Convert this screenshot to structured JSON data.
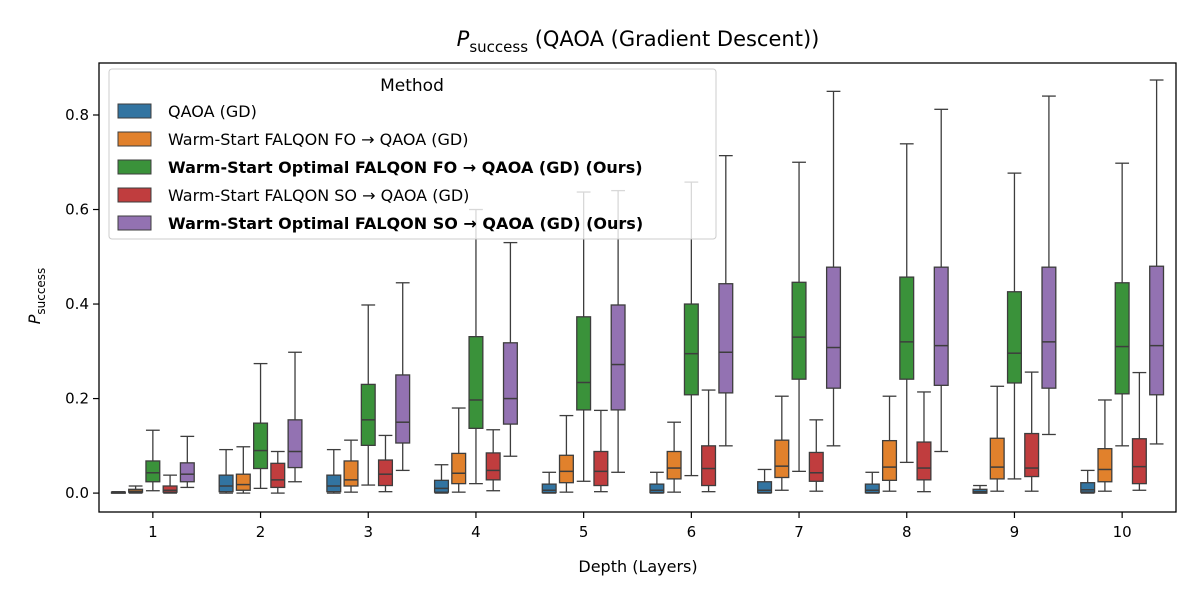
{
  "chart_data": {
    "type": "box",
    "title": "P",
    "title_sub": "success",
    "title_rest": " (QAOA (Gradient Descent))",
    "xlabel": "Depth (Layers)",
    "ylabel": "P",
    "ylabel_sub": "success",
    "ylim": [
      -0.04,
      0.91
    ],
    "y_ticks": [
      0.0,
      0.2,
      0.4,
      0.6,
      0.8
    ],
    "y_tick_labels": [
      "0.0",
      "0.2",
      "0.4",
      "0.6",
      "0.8"
    ],
    "categories": [
      "1",
      "2",
      "3",
      "4",
      "5",
      "6",
      "7",
      "8",
      "9",
      "10"
    ],
    "legend": {
      "title": "Method",
      "position": "top-left"
    },
    "series": [
      {
        "name": "QAOA (GD)",
        "color": "#3274a1",
        "bold": false,
        "boxes": [
          {
            "whislo": 0.0,
            "q1": 0.0,
            "med": 0.001,
            "q3": 0.002,
            "whishi": 0.003
          },
          {
            "whislo": 0.0,
            "q1": 0.003,
            "med": 0.015,
            "q3": 0.038,
            "whishi": 0.092
          },
          {
            "whislo": 0.0,
            "q1": 0.003,
            "med": 0.015,
            "q3": 0.038,
            "whishi": 0.092
          },
          {
            "whislo": 0.0,
            "q1": 0.002,
            "med": 0.01,
            "q3": 0.027,
            "whishi": 0.06
          },
          {
            "whislo": 0.0,
            "q1": 0.001,
            "med": 0.006,
            "q3": 0.019,
            "whishi": 0.044
          },
          {
            "whislo": 0.0,
            "q1": 0.001,
            "med": 0.006,
            "q3": 0.019,
            "whishi": 0.044
          },
          {
            "whislo": 0.0,
            "q1": 0.001,
            "med": 0.006,
            "q3": 0.024,
            "whishi": 0.05
          },
          {
            "whislo": 0.0,
            "q1": 0.001,
            "med": 0.006,
            "q3": 0.019,
            "whishi": 0.044
          },
          {
            "whislo": 0.0,
            "q1": 0.0,
            "med": 0.003,
            "q3": 0.008,
            "whishi": 0.016
          },
          {
            "whislo": 0.0,
            "q1": 0.002,
            "med": 0.007,
            "q3": 0.022,
            "whishi": 0.048
          }
        ]
      },
      {
        "name": "Warm-Start FALQON FO → QAOA (GD)",
        "color": "#e1812c",
        "bold": false,
        "boxes": [
          {
            "whislo": 0.0,
            "q1": 0.002,
            "med": 0.004,
            "q3": 0.008,
            "whishi": 0.015
          },
          {
            "whislo": 0.0,
            "q1": 0.006,
            "med": 0.018,
            "q3": 0.04,
            "whishi": 0.098
          },
          {
            "whislo": 0.002,
            "q1": 0.015,
            "med": 0.028,
            "q3": 0.068,
            "whishi": 0.112
          },
          {
            "whislo": 0.002,
            "q1": 0.02,
            "med": 0.042,
            "q3": 0.084,
            "whishi": 0.18
          },
          {
            "whislo": 0.002,
            "q1": 0.022,
            "med": 0.046,
            "q3": 0.08,
            "whishi": 0.164
          },
          {
            "whislo": 0.002,
            "q1": 0.03,
            "med": 0.053,
            "q3": 0.088,
            "whishi": 0.15
          },
          {
            "whislo": 0.006,
            "q1": 0.033,
            "med": 0.057,
            "q3": 0.112,
            "whishi": 0.205
          },
          {
            "whislo": 0.004,
            "q1": 0.027,
            "med": 0.055,
            "q3": 0.111,
            "whishi": 0.205
          },
          {
            "whislo": 0.004,
            "q1": 0.03,
            "med": 0.055,
            "q3": 0.116,
            "whishi": 0.226
          },
          {
            "whislo": 0.004,
            "q1": 0.024,
            "med": 0.05,
            "q3": 0.094,
            "whishi": 0.197
          }
        ]
      },
      {
        "name": "Warm-Start Optimal FALQON FO → QAOA (GD) (Ours)",
        "color": "#3a923a",
        "bold": true,
        "boxes": [
          {
            "whislo": 0.005,
            "q1": 0.024,
            "med": 0.043,
            "q3": 0.068,
            "whishi": 0.133
          },
          {
            "whislo": 0.01,
            "q1": 0.052,
            "med": 0.09,
            "q3": 0.148,
            "whishi": 0.274
          },
          {
            "whislo": 0.017,
            "q1": 0.101,
            "med": 0.155,
            "q3": 0.23,
            "whishi": 0.398
          },
          {
            "whislo": 0.02,
            "q1": 0.137,
            "med": 0.197,
            "q3": 0.331,
            "whishi": 0.6
          },
          {
            "whislo": 0.025,
            "q1": 0.176,
            "med": 0.234,
            "q3": 0.373,
            "whishi": 0.637
          },
          {
            "whislo": 0.037,
            "q1": 0.208,
            "med": 0.295,
            "q3": 0.4,
            "whishi": 0.658
          },
          {
            "whislo": 0.046,
            "q1": 0.241,
            "med": 0.33,
            "q3": 0.446,
            "whishi": 0.7
          },
          {
            "whislo": 0.065,
            "q1": 0.241,
            "med": 0.32,
            "q3": 0.457,
            "whishi": 0.739
          },
          {
            "whislo": 0.03,
            "q1": 0.233,
            "med": 0.296,
            "q3": 0.426,
            "whishi": 0.677
          },
          {
            "whislo": 0.1,
            "q1": 0.21,
            "med": 0.31,
            "q3": 0.445,
            "whishi": 0.698
          }
        ]
      },
      {
        "name": "Warm-Start FALQON SO → QAOA (GD)",
        "color": "#c03d3e",
        "bold": false,
        "boxes": [
          {
            "whislo": 0.0,
            "q1": 0.002,
            "med": 0.006,
            "q3": 0.015,
            "whishi": 0.038
          },
          {
            "whislo": 0.0,
            "q1": 0.012,
            "med": 0.028,
            "q3": 0.063,
            "whishi": 0.088
          },
          {
            "whislo": 0.003,
            "q1": 0.016,
            "med": 0.04,
            "q3": 0.07,
            "whishi": 0.122
          },
          {
            "whislo": 0.005,
            "q1": 0.028,
            "med": 0.048,
            "q3": 0.085,
            "whishi": 0.134
          },
          {
            "whislo": 0.003,
            "q1": 0.016,
            "med": 0.046,
            "q3": 0.088,
            "whishi": 0.175
          },
          {
            "whislo": 0.003,
            "q1": 0.016,
            "med": 0.052,
            "q3": 0.1,
            "whishi": 0.218
          },
          {
            "whislo": 0.004,
            "q1": 0.025,
            "med": 0.043,
            "q3": 0.086,
            "whishi": 0.155
          },
          {
            "whislo": 0.003,
            "q1": 0.028,
            "med": 0.053,
            "q3": 0.108,
            "whishi": 0.214
          },
          {
            "whislo": 0.004,
            "q1": 0.035,
            "med": 0.053,
            "q3": 0.126,
            "whishi": 0.256
          },
          {
            "whislo": 0.006,
            "q1": 0.02,
            "med": 0.056,
            "q3": 0.115,
            "whishi": 0.255
          }
        ]
      },
      {
        "name": "Warm-Start Optimal FALQON SO → QAOA (GD) (Ours)",
        "color": "#9372b2",
        "bold": true,
        "boxes": [
          {
            "whislo": 0.012,
            "q1": 0.024,
            "med": 0.04,
            "q3": 0.064,
            "whishi": 0.12
          },
          {
            "whislo": 0.024,
            "q1": 0.054,
            "med": 0.088,
            "q3": 0.155,
            "whishi": 0.298
          },
          {
            "whislo": 0.048,
            "q1": 0.106,
            "med": 0.15,
            "q3": 0.25,
            "whishi": 0.445
          },
          {
            "whislo": 0.078,
            "q1": 0.146,
            "med": 0.2,
            "q3": 0.318,
            "whishi": 0.53
          },
          {
            "whislo": 0.044,
            "q1": 0.176,
            "med": 0.272,
            "q3": 0.398,
            "whishi": 0.64
          },
          {
            "whislo": 0.1,
            "q1": 0.212,
            "med": 0.298,
            "q3": 0.443,
            "whishi": 0.714
          },
          {
            "whislo": 0.1,
            "q1": 0.222,
            "med": 0.308,
            "q3": 0.478,
            "whishi": 0.85
          },
          {
            "whislo": 0.088,
            "q1": 0.228,
            "med": 0.312,
            "q3": 0.478,
            "whishi": 0.812
          },
          {
            "whislo": 0.124,
            "q1": 0.222,
            "med": 0.32,
            "q3": 0.478,
            "whishi": 0.84
          },
          {
            "whislo": 0.104,
            "q1": 0.208,
            "med": 0.312,
            "q3": 0.48,
            "whishi": 0.874
          }
        ]
      }
    ]
  }
}
